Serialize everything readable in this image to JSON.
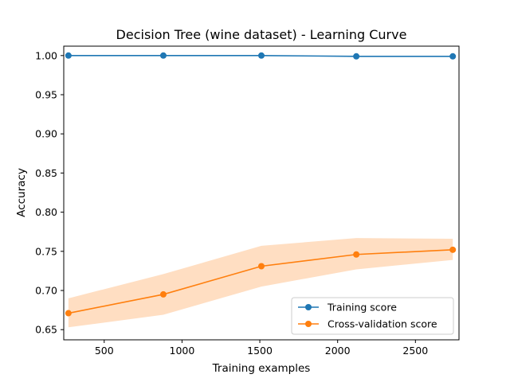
{
  "chart_data": {
    "type": "line",
    "title": "Decision Tree (wine dataset) - Learning Curve",
    "xlabel": "Training examples",
    "ylabel": "Accuracy",
    "xlim": [
      240,
      2780
    ],
    "ylim": [
      0.637,
      1.012
    ],
    "xticks": [
      500,
      1000,
      1500,
      2000,
      2500
    ],
    "yticks": [
      0.65,
      0.7,
      0.75,
      0.8,
      0.85,
      0.9,
      0.95,
      1.0
    ],
    "legend_position": "lower-right",
    "x": [
      270,
      880,
      1510,
      2120,
      2740
    ],
    "series": [
      {
        "name": "Training score",
        "color": "#1f77b4",
        "values": [
          1.0,
          1.0,
          1.0,
          0.999,
          0.999
        ],
        "band_lower": [
          1.0,
          1.0,
          1.0,
          0.999,
          0.999
        ],
        "band_upper": [
          1.0,
          1.0,
          1.0,
          0.999,
          0.999
        ]
      },
      {
        "name": "Cross-validation score",
        "color": "#ff7f0e",
        "band_color": "#ffdec2",
        "values": [
          0.671,
          0.695,
          0.731,
          0.746,
          0.752
        ],
        "band_lower": [
          0.653,
          0.669,
          0.705,
          0.727,
          0.739
        ],
        "band_upper": [
          0.69,
          0.721,
          0.757,
          0.767,
          0.766
        ]
      }
    ]
  }
}
